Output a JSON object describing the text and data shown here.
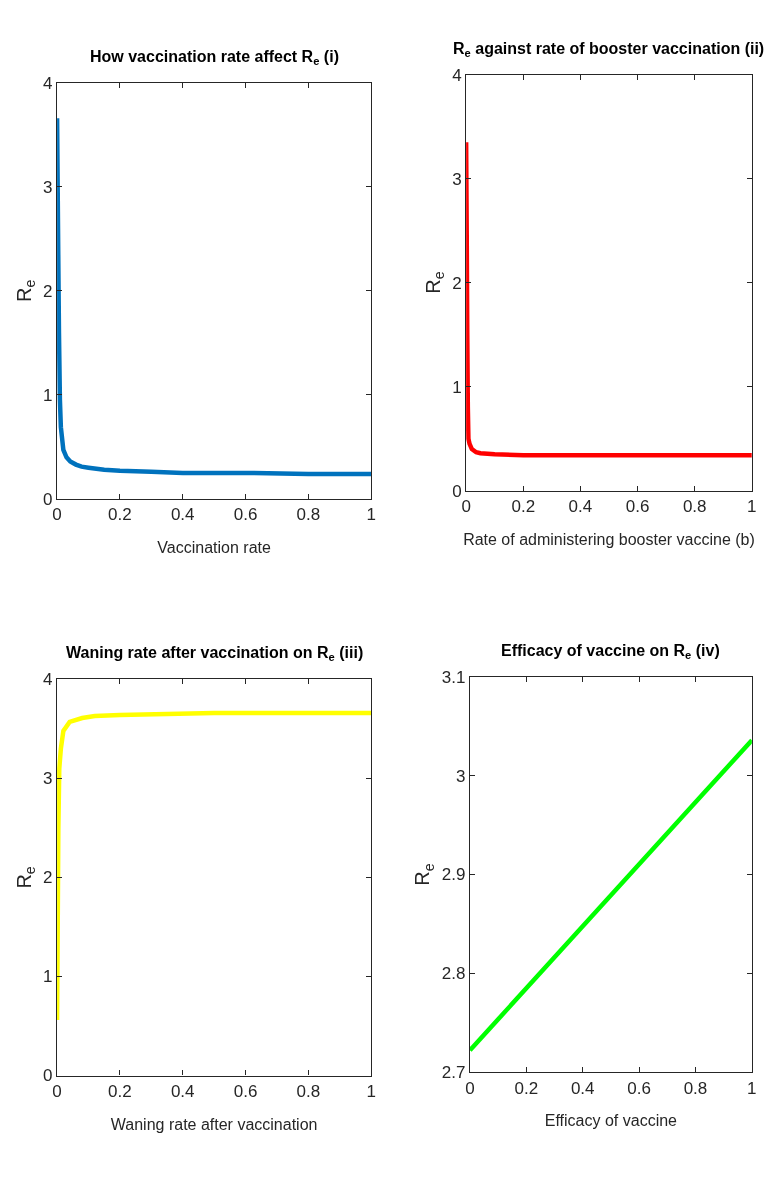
{
  "chart_data": [
    {
      "type": "line",
      "title": "How vaccination rate affect R$_{e}$ (i)",
      "xlabel": "Vaccination rate",
      "ylabel": "R$_{e}$",
      "xlim": [
        0,
        1
      ],
      "ylim": [
        0,
        4
      ],
      "xticks": [
        0,
        0.2,
        0.4,
        0.6,
        0.8,
        1
      ],
      "yticks": [
        0,
        1,
        2,
        3,
        4
      ],
      "series": [
        {
          "color": "#0072bd",
          "x": [
            0,
            0.003,
            0.006,
            0.009,
            0.012,
            0.02,
            0.03,
            0.042,
            0.06,
            0.078,
            0.1,
            0.15,
            0.2,
            0.3,
            0.4,
            0.6,
            0.8,
            1
          ],
          "values": [
            3.66,
            2.6,
            1.6,
            0.95,
            0.69,
            0.47,
            0.4,
            0.36,
            0.33,
            0.31,
            0.3,
            0.28,
            0.27,
            0.26,
            0.25,
            0.25,
            0.24,
            0.24
          ]
        }
      ]
    },
    {
      "type": "line",
      "title": "R$_{e}$ against rate of booster vaccination (ii)",
      "xlabel": "Rate of administering booster vaccine (b)",
      "ylabel": "R$_{e}$",
      "xlim": [
        0,
        1
      ],
      "ylim": [
        0,
        4
      ],
      "xticks": [
        0,
        0.2,
        0.4,
        0.6,
        0.8,
        1
      ],
      "yticks": [
        0,
        1,
        2,
        3,
        4
      ],
      "series": [
        {
          "color": "#ff0000",
          "x": [
            0,
            0.002,
            0.004,
            0.006,
            0.008,
            0.012,
            0.02,
            0.035,
            0.05,
            0.1,
            0.2,
            0.5,
            1
          ],
          "values": [
            3.35,
            2.5,
            1.5,
            0.8,
            0.5,
            0.45,
            0.4,
            0.37,
            0.36,
            0.35,
            0.34,
            0.34,
            0.34
          ]
        }
      ]
    },
    {
      "type": "line",
      "title": "Waning rate after vaccination on R$_{e}$ (iii)",
      "xlabel": "Waning rate after vaccination",
      "ylabel": "R$_{e}$",
      "xlim": [
        0,
        1
      ],
      "ylim": [
        0,
        4
      ],
      "xticks": [
        0,
        0.2,
        0.4,
        0.6,
        0.8,
        1
      ],
      "yticks": [
        0,
        1,
        2,
        3,
        4
      ],
      "series": [
        {
          "color": "#ffff00",
          "x": [
            0,
            0.002,
            0.004,
            0.007,
            0.012,
            0.02,
            0.04,
            0.08,
            0.12,
            0.2,
            0.5,
            1
          ],
          "values": [
            0.56,
            1.5,
            2.5,
            3.1,
            3.3,
            3.48,
            3.57,
            3.61,
            3.63,
            3.64,
            3.66,
            3.66
          ]
        }
      ]
    },
    {
      "type": "line",
      "title": "Efficacy of vaccine on R$_{e}$ (iv)",
      "xlabel": "Efficacy of vaccine",
      "ylabel": "R$_{e}$",
      "xlim": [
        0,
        1
      ],
      "ylim": [
        2.7,
        3.1
      ],
      "xticks": [
        0,
        0.2,
        0.4,
        0.6,
        0.8,
        1
      ],
      "yticks": [
        2.7,
        2.8,
        2.9,
        3,
        3.1
      ],
      "series": [
        {
          "color": "#00ff00",
          "x": [
            0,
            0.5,
            1
          ],
          "values": [
            2.722,
            2.879,
            3.036
          ]
        }
      ]
    }
  ]
}
